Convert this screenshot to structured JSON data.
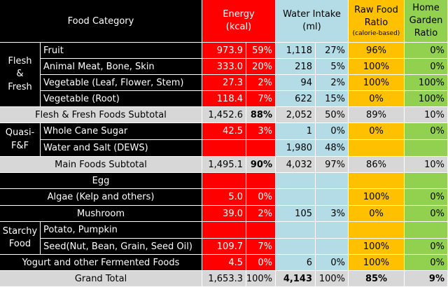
{
  "header": {
    "food_category": "Food Category",
    "energy_line1": "Energy",
    "energy_line2": "(kcal)",
    "water_line1": "Water Intake",
    "water_line2": "(ml)",
    "raw_line1": "Raw Food",
    "raw_line2": "Ratio",
    "raw_line3": "(calorie-based)",
    "home_line1": "Home",
    "home_line2": "Garden",
    "home_line3": "Ratio"
  },
  "groups": {
    "flesh_line1": "Flesh",
    "flesh_line2": "&",
    "flesh_line3": "Fresh",
    "quasi_line1": "Quasi-",
    "quasi_line2": "F&F",
    "starchy_line1": "Starchy",
    "starchy_line2": "Food"
  },
  "rows": [
    {
      "label": "Fruit",
      "energy": "973.9",
      "energy_pct": "59%",
      "water": "1,118",
      "water_pct": "27%",
      "raw": "96%",
      "home": "0%"
    },
    {
      "label": "Animal Meat, Bone, Skin",
      "energy": "333.0",
      "energy_pct": "20%",
      "water": "218",
      "water_pct": "5%",
      "raw": "100%",
      "home": "0%"
    },
    {
      "label": "Vegetable (Leaf, Flower, Stem)",
      "energy": "27.3",
      "energy_pct": "2%",
      "water": "94",
      "water_pct": "2%",
      "raw": "100%",
      "home": "100%"
    },
    {
      "label": "Vegetable (Root)",
      "energy": "118.4",
      "energy_pct": "7%",
      "water": "622",
      "water_pct": "15%",
      "raw": "0%",
      "home": "100%"
    },
    {
      "label": "Flesh & Fresh Foods Subtotal",
      "energy": "1,452.6",
      "energy_pct": "88%",
      "water": "2,052",
      "water_pct": "50%",
      "raw": "89%",
      "home": "10%"
    },
    {
      "label": "Whole Cane Sugar",
      "energy": "42.5",
      "energy_pct": "3%",
      "water": "1",
      "water_pct": "0%",
      "raw": "0%",
      "home": "0%"
    },
    {
      "label": "Water and Salt (DEWS)",
      "energy": "",
      "energy_pct": "",
      "water": "1,980",
      "water_pct": "48%",
      "raw": "",
      "home": ""
    },
    {
      "label": "Main Foods Subtotal",
      "energy": "1,495.1",
      "energy_pct": "90%",
      "water": "4,032",
      "water_pct": "97%",
      "raw": "86%",
      "home": "10%"
    },
    {
      "label": "Egg",
      "energy": "",
      "energy_pct": "",
      "water": "",
      "water_pct": "",
      "raw": "",
      "home": ""
    },
    {
      "label": "Algae (Kelp and others)",
      "energy": "5.0",
      "energy_pct": "0%",
      "water": "",
      "water_pct": "",
      "raw": "100%",
      "home": "0%"
    },
    {
      "label": "Mushroom",
      "energy": "39.0",
      "energy_pct": "2%",
      "water": "105",
      "water_pct": "3%",
      "raw": "0%",
      "home": "0%"
    },
    {
      "label": "Potato, Pumpkin",
      "energy": "",
      "energy_pct": "",
      "water": "",
      "water_pct": "",
      "raw": "",
      "home": ""
    },
    {
      "label": "Seed(Nut, Bean, Grain, Seed Oil)",
      "energy": "109.7",
      "energy_pct": "7%",
      "water": "",
      "water_pct": "",
      "raw": "100%",
      "home": "0%"
    },
    {
      "label": "Yogurt and other Fermented Foods",
      "energy": "4.5",
      "energy_pct": "0%",
      "water": "6",
      "water_pct": "0%",
      "raw": "100%",
      "home": "0%"
    },
    {
      "label": "Grand Total",
      "energy": "1,653.3",
      "energy_pct": "100%",
      "water": "4,143",
      "water_pct": "100%",
      "raw": "85%",
      "home": "9%"
    }
  ],
  "colors": {
    "energy_column": "#fe0000",
    "water_column": "#b4dce6",
    "raw_column": "#ffc000",
    "home_column": "#92d050",
    "subtotal_row": "#d7d7d7",
    "label_column": "#000000"
  }
}
